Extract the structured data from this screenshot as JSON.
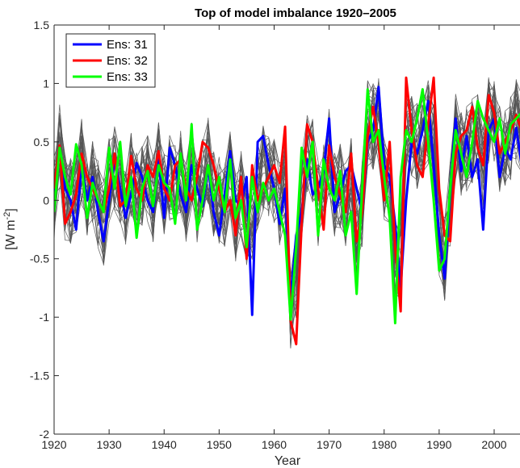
{
  "chart_data": {
    "type": "line",
    "title": "Top of model imbalance 1920–2005",
    "xlabel": "Year",
    "ylabel": "[W m",
    "ylabel_sup": "-2",
    "ylabel_end": "]",
    "xlim": [
      1920,
      2005
    ],
    "ylim": [
      -2,
      1.5
    ],
    "xticks": [
      1920,
      1930,
      1940,
      1950,
      1960,
      1970,
      1980,
      1990,
      2000
    ],
    "xtick_labels": [
      "1920",
      "1930",
      "1940",
      "1950",
      "1960",
      "1970",
      "1980",
      "1990",
      "2000"
    ],
    "yticks": [
      -2,
      -1.5,
      -1,
      -0.5,
      0,
      0.5,
      1,
      1.5
    ],
    "ytick_labels": [
      "-2",
      "-1.5",
      "-1",
      "-0.5",
      "0",
      "0.5",
      "1",
      "1.5"
    ],
    "grid": false,
    "legend_position": "top-left",
    "background_ensemble_members": 30,
    "background_color": "#555555",
    "x": [
      1920,
      1921,
      1922,
      1923,
      1924,
      1925,
      1926,
      1927,
      1928,
      1929,
      1930,
      1931,
      1932,
      1933,
      1934,
      1935,
      1936,
      1937,
      1938,
      1939,
      1940,
      1941,
      1942,
      1943,
      1944,
      1945,
      1946,
      1947,
      1948,
      1949,
      1950,
      1951,
      1952,
      1953,
      1954,
      1955,
      1956,
      1957,
      1958,
      1959,
      1960,
      1961,
      1962,
      1963,
      1964,
      1965,
      1966,
      1967,
      1968,
      1969,
      1970,
      1971,
      1972,
      1973,
      1974,
      1975,
      1976,
      1977,
      1978,
      1979,
      1980,
      1981,
      1982,
      1983,
      1984,
      1985,
      1986,
      1987,
      1988,
      1989,
      1990,
      1991,
      1992,
      1993,
      1994,
      1995,
      1996,
      1997,
      1998,
      1999,
      2000,
      2001,
      2002,
      2003,
      2004,
      2005
    ],
    "series": [
      {
        "name": "Ens: 31",
        "color": "#0000ff",
        "values": [
          0.08,
          0.45,
          0.1,
          0.0,
          -0.25,
          0.3,
          0.0,
          0.2,
          -0.1,
          -0.35,
          0.0,
          0.35,
          0.1,
          -0.15,
          0.05,
          0.32,
          0.2,
          0.0,
          -0.1,
          0.35,
          -0.15,
          0.45,
          0.3,
          0.05,
          -0.1,
          0.3,
          0.1,
          -0.05,
          0.28,
          -0.1,
          -0.3,
          0.05,
          0.42,
          0.0,
          -0.05,
          0.2,
          -0.98,
          0.5,
          0.55,
          0.3,
          0.1,
          -0.2,
          0.1,
          -0.85,
          -0.3,
          -0.1,
          0.35,
          0.05,
          0.1,
          0.25,
          0.7,
          -0.1,
          0.05,
          0.25,
          0.3,
          0.1,
          -0.1,
          0.5,
          0.6,
          0.97,
          0.3,
          0.2,
          -0.2,
          -0.75,
          0.0,
          0.5,
          0.4,
          0.6,
          0.85,
          0.3,
          -0.3,
          -0.67,
          0.1,
          0.7,
          0.25,
          0.55,
          0.2,
          0.35,
          -0.25,
          0.6,
          0.7,
          0.2,
          0.45,
          0.35,
          0.62,
          0.3
        ]
      },
      {
        "name": "Ens: 32",
        "color": "#ff0000",
        "values": [
          0.1,
          0.47,
          -0.2,
          -0.1,
          0.05,
          0.4,
          0.2,
          0.1,
          0.0,
          -0.1,
          0.1,
          0.4,
          -0.05,
          0.0,
          0.38,
          0.1,
          0.0,
          0.3,
          0.2,
          0.42,
          0.1,
          0.0,
          0.3,
          0.35,
          0.1,
          0.0,
          0.2,
          0.5,
          0.45,
          0.3,
          0.1,
          -0.1,
          0.0,
          -0.3,
          0.2,
          -0.5,
          0.3,
          0.0,
          0.1,
          0.2,
          0.3,
          0.15,
          0.63,
          -1.03,
          -1.23,
          -0.2,
          0.65,
          0.5,
          0.1,
          -0.25,
          0.47,
          0.2,
          0.05,
          -0.1,
          0.4,
          -0.35,
          -0.1,
          0.55,
          0.8,
          0.48,
          0.0,
          0.5,
          -0.4,
          -0.95,
          1.05,
          0.6,
          0.3,
          0.2,
          0.65,
          1.05,
          0.1,
          -0.3,
          -0.35,
          0.4,
          0.55,
          0.6,
          0.8,
          0.45,
          0.3,
          0.9,
          0.75,
          0.4,
          0.5,
          0.6,
          0.73,
          0.6
        ]
      },
      {
        "name": "Ens: 33",
        "color": "#00ff00",
        "values": [
          -0.1,
          0.45,
          0.2,
          0.05,
          0.48,
          0.3,
          -0.15,
          0.15,
          0.0,
          -0.1,
          0.45,
          0.1,
          0.5,
          -0.05,
          0.2,
          -0.32,
          0.1,
          0.25,
          -0.05,
          0.3,
          0.15,
          0.1,
          -0.2,
          0.4,
          0.0,
          0.65,
          -0.25,
          0.0,
          0.3,
          0.0,
          0.2,
          -0.1,
          0.35,
          -0.15,
          0.0,
          -0.4,
          0.2,
          -0.1,
          0.15,
          0.0,
          0.1,
          -0.1,
          -0.3,
          -1.02,
          -0.4,
          0.45,
          0.2,
          0.5,
          -0.3,
          0.35,
          0.1,
          0.0,
          0.25,
          -0.3,
          -0.1,
          -0.8,
          0.1,
          0.95,
          0.5,
          0.6,
          0.2,
          -0.15,
          -1.05,
          0.2,
          0.6,
          0.5,
          0.7,
          0.95,
          0.5,
          0.0,
          -0.6,
          -0.5,
          0.1,
          0.6,
          0.4,
          0.2,
          0.5,
          0.85,
          0.7,
          0.6,
          0.5,
          0.7,
          0.4,
          0.65,
          0.7,
          0.75
        ]
      }
    ]
  }
}
